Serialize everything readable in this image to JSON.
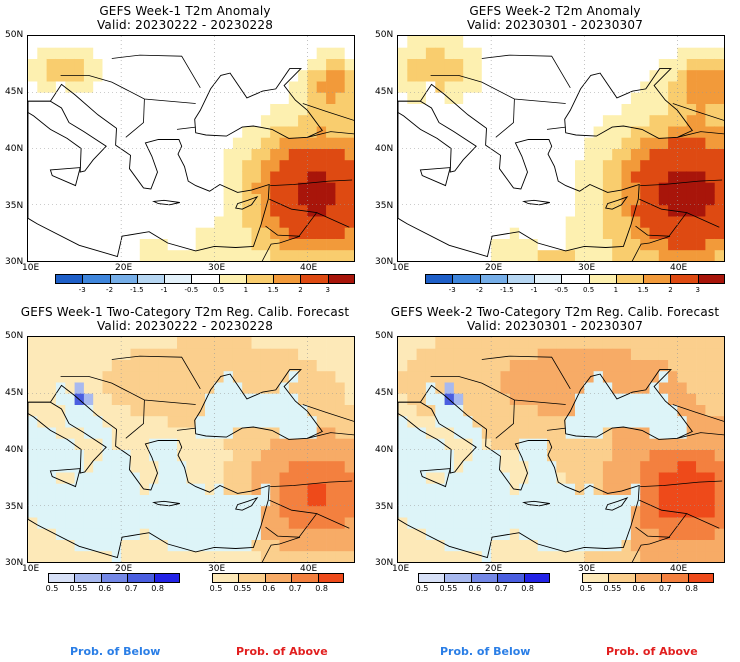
{
  "panels": [
    {
      "title": "GEFS Week-1 T2m Anomaly",
      "valid": "Valid: 20230222 - 20230228",
      "lat_labels": [
        "50N",
        "45N",
        "40N",
        "35N",
        "30N"
      ],
      "lon_labels": [
        "10E",
        "20E",
        "30E",
        "40E"
      ],
      "field": "anomaly"
    },
    {
      "title": "GEFS Week-2 T2m Anomaly",
      "valid": "Valid: 20230301 - 20230307",
      "lat_labels": [
        "50N",
        "45N",
        "40N",
        "35N",
        "30N"
      ],
      "lon_labels": [
        "10E",
        "20E",
        "30E",
        "40E"
      ],
      "field": "anomaly"
    },
    {
      "title": "GEFS Week-1 Two-Category T2m Reg. Calib. Forecast",
      "valid": "Valid: 20230222 - 20230228",
      "lat_labels": [
        "50N",
        "45N",
        "40N",
        "35N",
        "30N"
      ],
      "lon_labels": [
        "10E",
        "20E",
        "30E",
        "40E"
      ],
      "field": "probability"
    },
    {
      "title": "GEFS Week-2 Two-Category T2m Reg. Calib. Forecast",
      "valid": "Valid: 20230301 - 20230307",
      "lat_labels": [
        "50N",
        "45N",
        "40N",
        "35N",
        "30N"
      ],
      "lon_labels": [
        "10E",
        "20E",
        "30E",
        "40E"
      ],
      "field": "probability"
    }
  ],
  "anomaly_colorbar": {
    "ticks": [
      "-3",
      "-2",
      "-1.5",
      "-1",
      "-0.5",
      "0.5",
      "1",
      "1.5",
      "2",
      "3"
    ],
    "colors": [
      "#1e5fc8",
      "#3f86dc",
      "#76aee8",
      "#b6d6f2",
      "#e3f1fa",
      "#ffffff",
      "#fdf0b0",
      "#f9cd6e",
      "#f29a3a",
      "#de4a12",
      "#a8150a"
    ]
  },
  "below_colorbar": {
    "ticks": [
      "0.5",
      "0.55",
      "0.6",
      "0.7",
      "0.8"
    ],
    "colors": [
      "#d8e1f7",
      "#a8b9ef",
      "#7488e6",
      "#4a5ee0",
      "#2323e6"
    ]
  },
  "above_colorbar": {
    "ticks": [
      "0.5",
      "0.55",
      "0.6",
      "0.7",
      "0.8"
    ],
    "colors": [
      "#fde9b8",
      "#fbcf8d",
      "#f7ab66",
      "#f3803f",
      "#ee4a1a"
    ]
  },
  "legend": {
    "below_label": "Prob. of Below",
    "above_label": "Prob. of Above",
    "below_color": "#2a7ee6",
    "above_color": "#e11f1f"
  }
}
